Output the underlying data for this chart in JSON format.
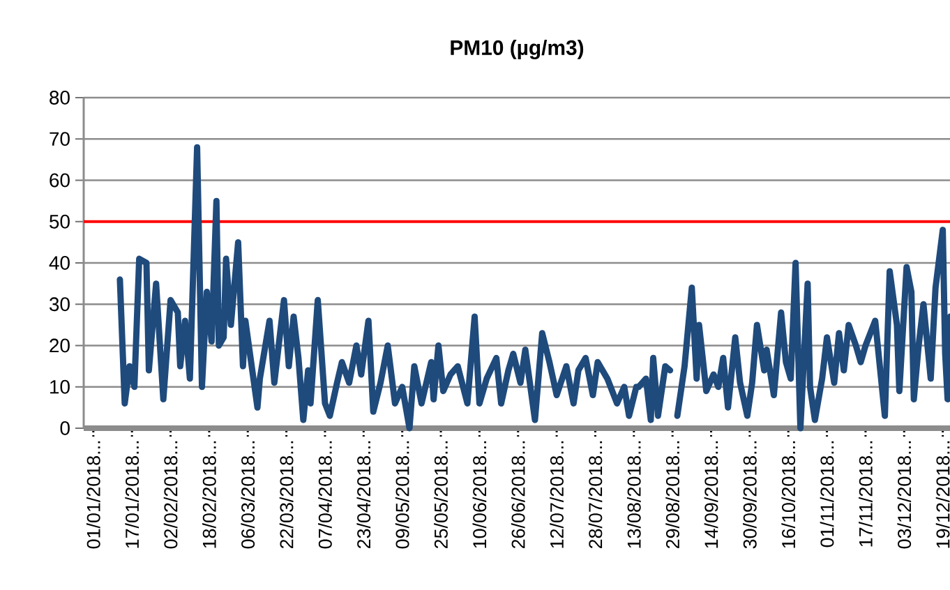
{
  "chart_data": {
    "type": "line",
    "title": "PM10 (µg/m3)",
    "color": "#1f4a7c",
    "grid": "y",
    "x": [
      "2018-01-12",
      "2018-01-14",
      "2018-01-16",
      "2018-01-18",
      "2018-01-20",
      "2018-01-23",
      "2018-01-24",
      "2018-01-27",
      "2018-01-30",
      "2018-02-02",
      "2018-02-05",
      "2018-02-06",
      "2018-02-08",
      "2018-02-10",
      "2018-02-13",
      "2018-02-15",
      "2018-02-17",
      "2018-02-19",
      "2018-02-21",
      "2018-02-22",
      "2018-02-24",
      "2018-02-25",
      "2018-02-27",
      "2018-03-02",
      "2018-03-04",
      "2018-03-05",
      "2018-03-10",
      "2018-03-11",
      "2018-03-15",
      "2018-03-17",
      "2018-03-21",
      "2018-03-23",
      "2018-03-25",
      "2018-03-27",
      "2018-03-29",
      "2018-03-31",
      "2018-04-01",
      "2018-04-04",
      "2018-04-07",
      "2018-04-09",
      "2018-04-12",
      "2018-04-14",
      "2018-04-17",
      "2018-04-20",
      "2018-04-22",
      "2018-04-25",
      "2018-04-27",
      "2018-04-30",
      "2018-05-03",
      "2018-05-06",
      "2018-05-09",
      "2018-05-12",
      "2018-05-14",
      "2018-05-17",
      "2018-05-21",
      "2018-05-22",
      "2018-05-24",
      "2018-05-26",
      "2018-05-29",
      "2018-06-01",
      "2018-06-05",
      "2018-06-08",
      "2018-06-10",
      "2018-06-13",
      "2018-06-17",
      "2018-06-19",
      "2018-06-22",
      "2018-06-24",
      "2018-06-27",
      "2018-06-29",
      "2018-07-03",
      "2018-07-06",
      "2018-07-09",
      "2018-07-12",
      "2018-07-16",
      "2018-07-19",
      "2018-07-21",
      "2018-07-24",
      "2018-07-27",
      "2018-07-29",
      "2018-08-02",
      "2018-08-06",
      "2018-08-09",
      "2018-08-11",
      "2018-08-14",
      "2018-08-15",
      "2018-08-18",
      "2018-08-20",
      "2018-08-21",
      "2018-08-23",
      "2018-08-26",
      "2018-08-28",
      "2018-08-29",
      "2018-08-31",
      "2018-09-03",
      "2018-09-06",
      "2018-09-08",
      "2018-09-09",
      "2018-09-12",
      "2018-09-15",
      "2018-09-17",
      "2018-09-19",
      "2018-09-21",
      "2018-09-24",
      "2018-09-26",
      "2018-09-29",
      "2018-10-01",
      "2018-10-03",
      "2018-10-06",
      "2018-10-07",
      "2018-10-10",
      "2018-10-13",
      "2018-10-15",
      "2018-10-17",
      "2018-10-19",
      "2018-10-21",
      "2018-10-24",
      "2018-10-25",
      "2018-10-27",
      "2018-10-30",
      "2018-11-01",
      "2018-11-04",
      "2018-11-06",
      "2018-11-08",
      "2018-11-10",
      "2018-11-13",
      "2018-11-15",
      "2018-11-17",
      "2018-11-21",
      "2018-11-25",
      "2018-11-27",
      "2018-11-30",
      "2018-12-01",
      "2018-12-04",
      "2018-12-06",
      "2018-12-07",
      "2018-12-09",
      "2018-12-11",
      "2018-12-14",
      "2018-12-16",
      "2018-12-19",
      "2018-12-20",
      "2018-12-21",
      "2018-12-22"
    ],
    "values": [
      36,
      6,
      15,
      10,
      41,
      40,
      14,
      35,
      7,
      31,
      28,
      15,
      26,
      12,
      68,
      10,
      33,
      21,
      55,
      20,
      22,
      41,
      25,
      45,
      15,
      26,
      5,
      12,
      26,
      11,
      31,
      15,
      27,
      17,
      2,
      14,
      6,
      31,
      6,
      3,
      11,
      16,
      11,
      20,
      13,
      26,
      4,
      11,
      20,
      6,
      10,
      0,
      15,
      6,
      16,
      7,
      20,
      9,
      13,
      15,
      6,
      27,
      6,
      12,
      17,
      6,
      14,
      18,
      11,
      19,
      2,
      23,
      16,
      8,
      15,
      6,
      14,
      17,
      8,
      16,
      12,
      6,
      10,
      3,
      10,
      10,
      12,
      2,
      17,
      3,
      15,
      14,
      null,
      3,
      15,
      34,
      12,
      25,
      9,
      13,
      10,
      17,
      5,
      22,
      11,
      3,
      11,
      25,
      14,
      19,
      8,
      28,
      16,
      12,
      40,
      0,
      35,
      10,
      2,
      12,
      22,
      11,
      23,
      14,
      25,
      20,
      16,
      20,
      26,
      3,
      38,
      25,
      9,
      39,
      33,
      7,
      20,
      30,
      12,
      34,
      48,
      18,
      7,
      27
    ],
    "xlim": [
      "2017-12-28",
      "2018-12-22"
    ],
    "ylim": [
      0,
      80
    ],
    "yticks": [
      0,
      10,
      20,
      30,
      40,
      50,
      60,
      70,
      80
    ],
    "xticks": [
      {
        "value": "2018-01-01",
        "label": "01/01/2018..."
      },
      {
        "value": "2018-01-17",
        "label": "17/01/2018..."
      },
      {
        "value": "2018-02-02",
        "label": "02/02/2018..."
      },
      {
        "value": "2018-02-18",
        "label": "18/02/2018..."
      },
      {
        "value": "2018-03-06",
        "label": "06/03/2018..."
      },
      {
        "value": "2018-03-22",
        "label": "22/03/2018..."
      },
      {
        "value": "2018-04-07",
        "label": "07/04/2018..."
      },
      {
        "value": "2018-04-23",
        "label": "23/04/2018..."
      },
      {
        "value": "2018-05-09",
        "label": "09/05/2018..."
      },
      {
        "value": "2018-05-25",
        "label": "25/05/2018..."
      },
      {
        "value": "2018-06-10",
        "label": "10/06/2018..."
      },
      {
        "value": "2018-06-26",
        "label": "26/06/2018..."
      },
      {
        "value": "2018-07-12",
        "label": "12/07/2018..."
      },
      {
        "value": "2018-07-28",
        "label": "28/07/2018..."
      },
      {
        "value": "2018-08-13",
        "label": "13/08/2018..."
      },
      {
        "value": "2018-08-29",
        "label": "29/08/2018..."
      },
      {
        "value": "2018-09-14",
        "label": "14/09/2018..."
      },
      {
        "value": "2018-09-30",
        "label": "30/09/2018..."
      },
      {
        "value": "2018-10-16",
        "label": "16/10/2018..."
      },
      {
        "value": "2018-11-01",
        "label": "01/11/2018..."
      },
      {
        "value": "2018-11-17",
        "label": "17/11/2018..."
      },
      {
        "value": "2018-12-03",
        "label": "03/12/2018..."
      },
      {
        "value": "2018-12-19",
        "label": "19/12/2018..."
      }
    ],
    "ref_lines": [
      {
        "axis": "y",
        "value": 50,
        "color": "#ff0000"
      }
    ]
  }
}
